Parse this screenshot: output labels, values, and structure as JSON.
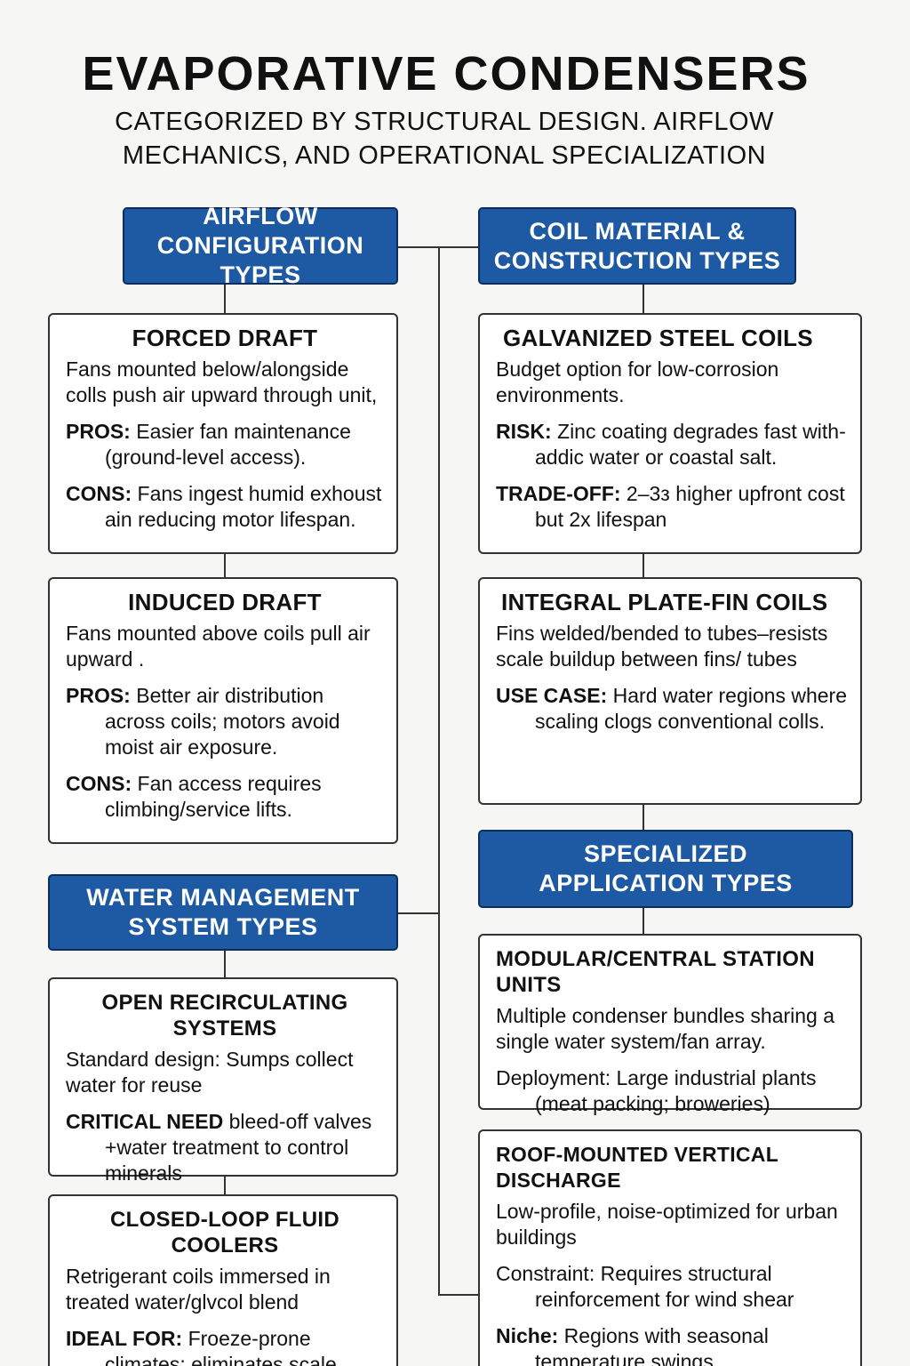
{
  "title": "EVAPORATIVE CONDENSERS",
  "subtitle": "CATEGORIZED BY STRUCTURAL DESIGN. AIRFLOW MECHANICS, AND OPERATIONAL SPECIALIZATION",
  "headers": {
    "airflow": "AIRFLOW CONFIGURATION TYPES",
    "coil": "COIL MATERIAL & CONSTRUCTION TYPES",
    "water": "WATER MANAGEMENT SYSTEM TYPES",
    "special": "SPECIALIZED APPLICATION TYPES"
  },
  "colors": {
    "header_fill": "#1d5aa3",
    "header_border": "#0e2e5a",
    "line": "#333333"
  },
  "cards": {
    "forced": {
      "title": "FORCED DRAFT",
      "intro": "Fans mounted below/alongside colls push air upward through unit,",
      "p1_label": "PROS:",
      "p1_text": " Easier fan maintenance (ground-level access).",
      "p2_label": "CONS:",
      "p2_text": " Fans ingest humid exhoust ain reducing motor lifespan."
    },
    "induced": {
      "title": "INDUCED DRAFT",
      "intro": "Fans mounted above coils pull air upward .",
      "p1_label": "PROS:",
      "p1_text": " Better air distribution across coils; motors avoid moist air exposure.",
      "p2_label": "CONS:",
      "p2_text": " Fan access requires climbing/service lifts."
    },
    "open": {
      "title": "OPEN RECIRCULATING SYSTEMS",
      "intro": "Standard design: Sumps collect water for reuse",
      "p1_label": "CRITICAL NEED",
      "p1_text": " bleed-off valves +water treatment to control minerals"
    },
    "closed": {
      "title": "CLOSED-LOOP FLUID COOLERS",
      "intro": "Retrigerant coils immersed in treated water/glvcol blend",
      "p1_label": "IDEAL FOR:",
      "p1_text": " Froeze-prone climates; eliminates scale"
    },
    "galv": {
      "title": "GALVANIZED STEEL COILS",
      "intro": "Budget option for low-corrosion environments.",
      "p1_label": "RISK:",
      "p1_text": " Zinc coating degrades fast with-addic water or coastal salt.",
      "p2_label": "TRADE-OFF:",
      "p2_text": " 2–3з higher upfront cost but 2x lifespan"
    },
    "plate": {
      "title": "INTEGRAL PLATE-FIN COILS",
      "intro": "Fins welded/bended to tubes–resists scale buildup between fins/ tubes",
      "p1_label": "USE CASE:",
      "p1_text": " Hard water regions where scaling clogs conventional colls."
    },
    "modular": {
      "title": "MODULAR/CENTRAL STATION UNITS",
      "intro": "Multiple condenser bundles sharing a single water system/fan array.",
      "p1_label": "",
      "p1_text": "Deployment: Large industrial plants (meat packing; broweries)"
    },
    "roof": {
      "title": "ROOF-MOUNTED VERTICAL DISCHARGE",
      "intro": "Low-profile, noise-optimized for urban buildings",
      "p1_label": "",
      "p1_text": "Constraint: Requires structural reinforcement for wind shear",
      "p2_label": "Niche:",
      "p2_text": " Regions with seasonal temperature swings"
    }
  }
}
